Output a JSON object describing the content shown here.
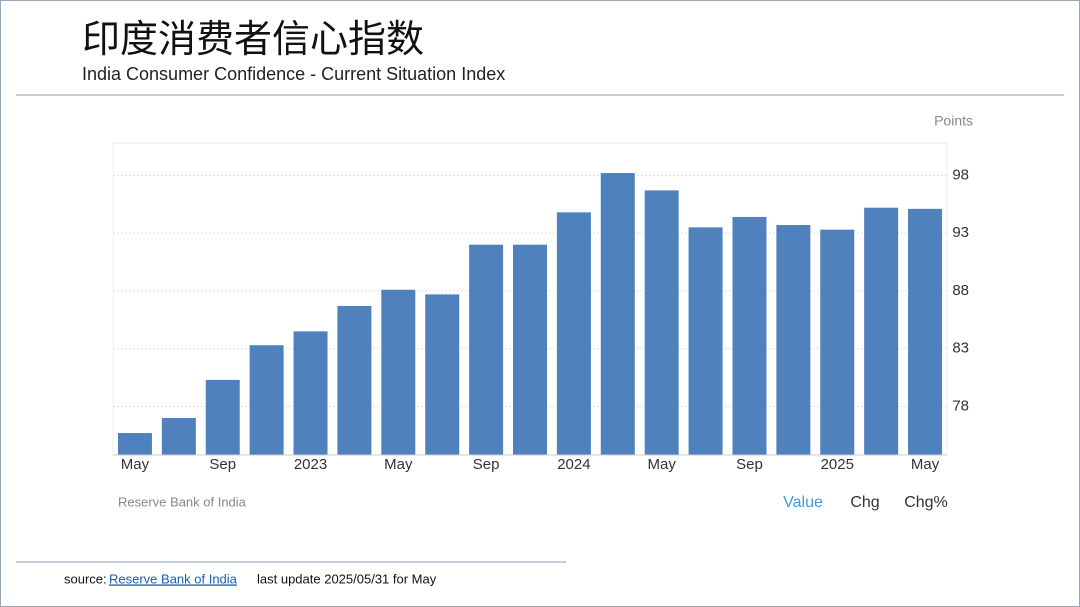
{
  "slide": {
    "title": "印度消费者信心指数",
    "subtitle": "India Consumer Confidence - Current Situation Index"
  },
  "chart_data": {
    "type": "bar",
    "unit_label": "Points",
    "source": "Reserve Bank of India",
    "tabs": [
      "Value",
      "Chg",
      "Chg%"
    ],
    "categories": [
      "May",
      null,
      "Sep",
      null,
      "2023",
      null,
      "May",
      null,
      "Sep",
      null,
      "2024",
      null,
      "May",
      null,
      "Sep",
      null,
      "2025",
      null,
      "May"
    ],
    "values": [
      75.7,
      77.0,
      80.3,
      83.3,
      84.5,
      86.7,
      88.1,
      87.7,
      92.0,
      92.0,
      94.8,
      98.2,
      96.7,
      93.5,
      94.4,
      93.7,
      93.3,
      95.2,
      95.1
    ],
    "color": "#4f81bd",
    "ylim": [
      73.8,
      100.8
    ],
    "yticks": [
      78,
      83,
      88,
      93,
      98
    ],
    "grid": true
  },
  "footer": {
    "prefix": "source:",
    "link": "Reserve Bank of India",
    "update": "last update 2025/05/31 for May"
  }
}
